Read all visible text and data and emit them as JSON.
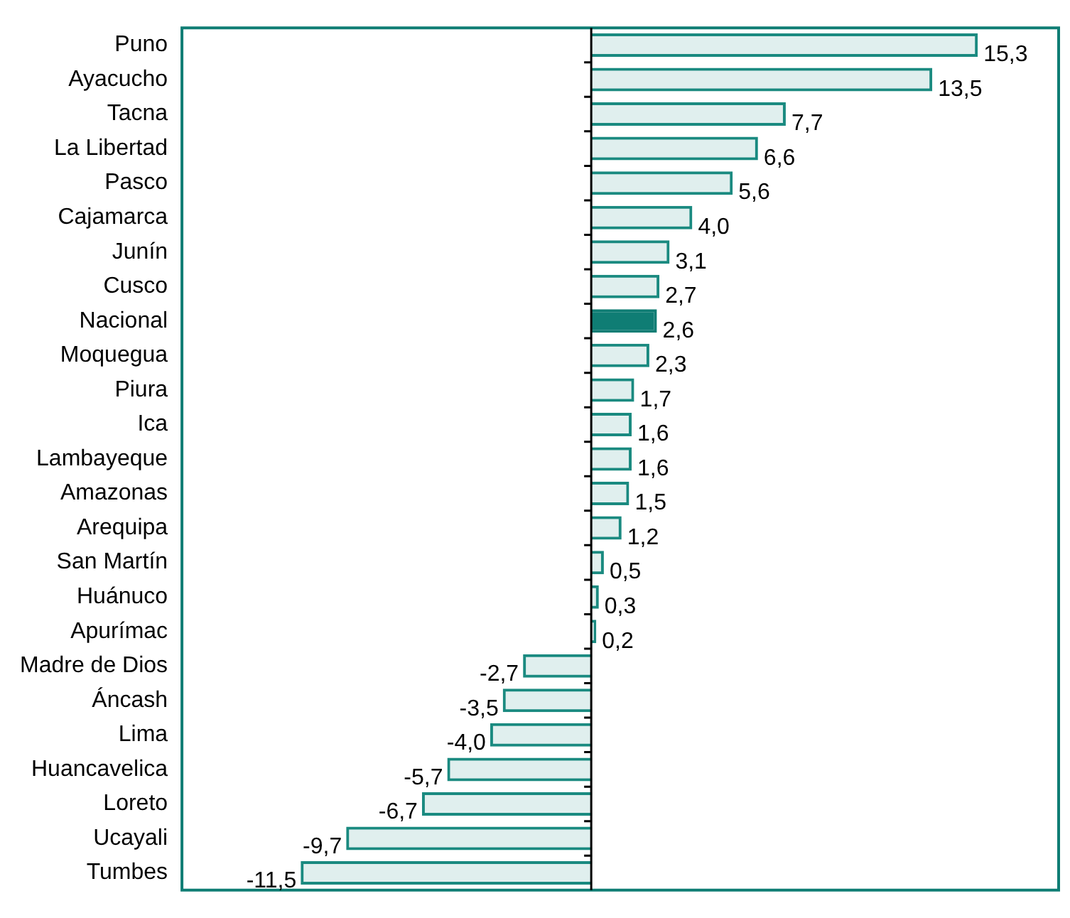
{
  "chart_data": {
    "type": "bar",
    "orientation": "horizontal",
    "categories": [
      "Puno",
      "Ayacucho",
      "Tacna",
      "La Libertad",
      "Pasco",
      "Cajamarca",
      "Junín",
      "Cusco",
      "Nacional",
      "Moquegua",
      "Piura",
      "Ica",
      "Lambayeque",
      "Amazonas",
      "Arequipa",
      "San Martín",
      "Huánuco",
      "Apurímac",
      "Madre de Dios",
      "Áncash",
      "Lima",
      "Huancavelica",
      "Loreto",
      "Ucayali",
      "Tumbes"
    ],
    "values": [
      15.3,
      13.5,
      7.7,
      6.6,
      5.6,
      4.0,
      3.1,
      2.7,
      2.6,
      2.3,
      1.7,
      1.6,
      1.6,
      1.5,
      1.2,
      0.5,
      0.3,
      0.2,
      -2.7,
      -3.5,
      -4.0,
      -5.7,
      -6.7,
      -9.7,
      -11.5
    ],
    "value_labels": [
      "15,3",
      "13,5",
      "7,7",
      "6,6",
      "5,6",
      "4,0",
      "3,1",
      "2,7",
      "2,6",
      "2,3",
      "1,7",
      "1,6",
      "1,6",
      "1,5",
      "1,2",
      "0,5",
      "0,3",
      "0,2",
      "-2,7",
      "-3,5",
      "-4,0",
      "-5,7",
      "-6,7",
      "-9,7",
      "-11,5"
    ],
    "colors": [
      "#1a8a80",
      "#1a8a80",
      "#1a8a80",
      "#1a8a80",
      "#1a8a80",
      "#1a8a80",
      "#1a8a80",
      "#1a8a80",
      "#0f7d74",
      "#1a8a80",
      "#1a8a80",
      "#1a8a80",
      "#1a8a80",
      "#1a8a80",
      "#1a8a80",
      "#1a8a80",
      "#1a8a80",
      "#1a8a80",
      "#1a8a80",
      "#1a8a80",
      "#1a8a80",
      "#1a8a80",
      "#1a8a80",
      "#1a8a80",
      "#1a8a80"
    ],
    "xlim": [
      -16.2,
      18.5
    ],
    "tick_labels": "y",
    "grid": false,
    "legend": false
  }
}
